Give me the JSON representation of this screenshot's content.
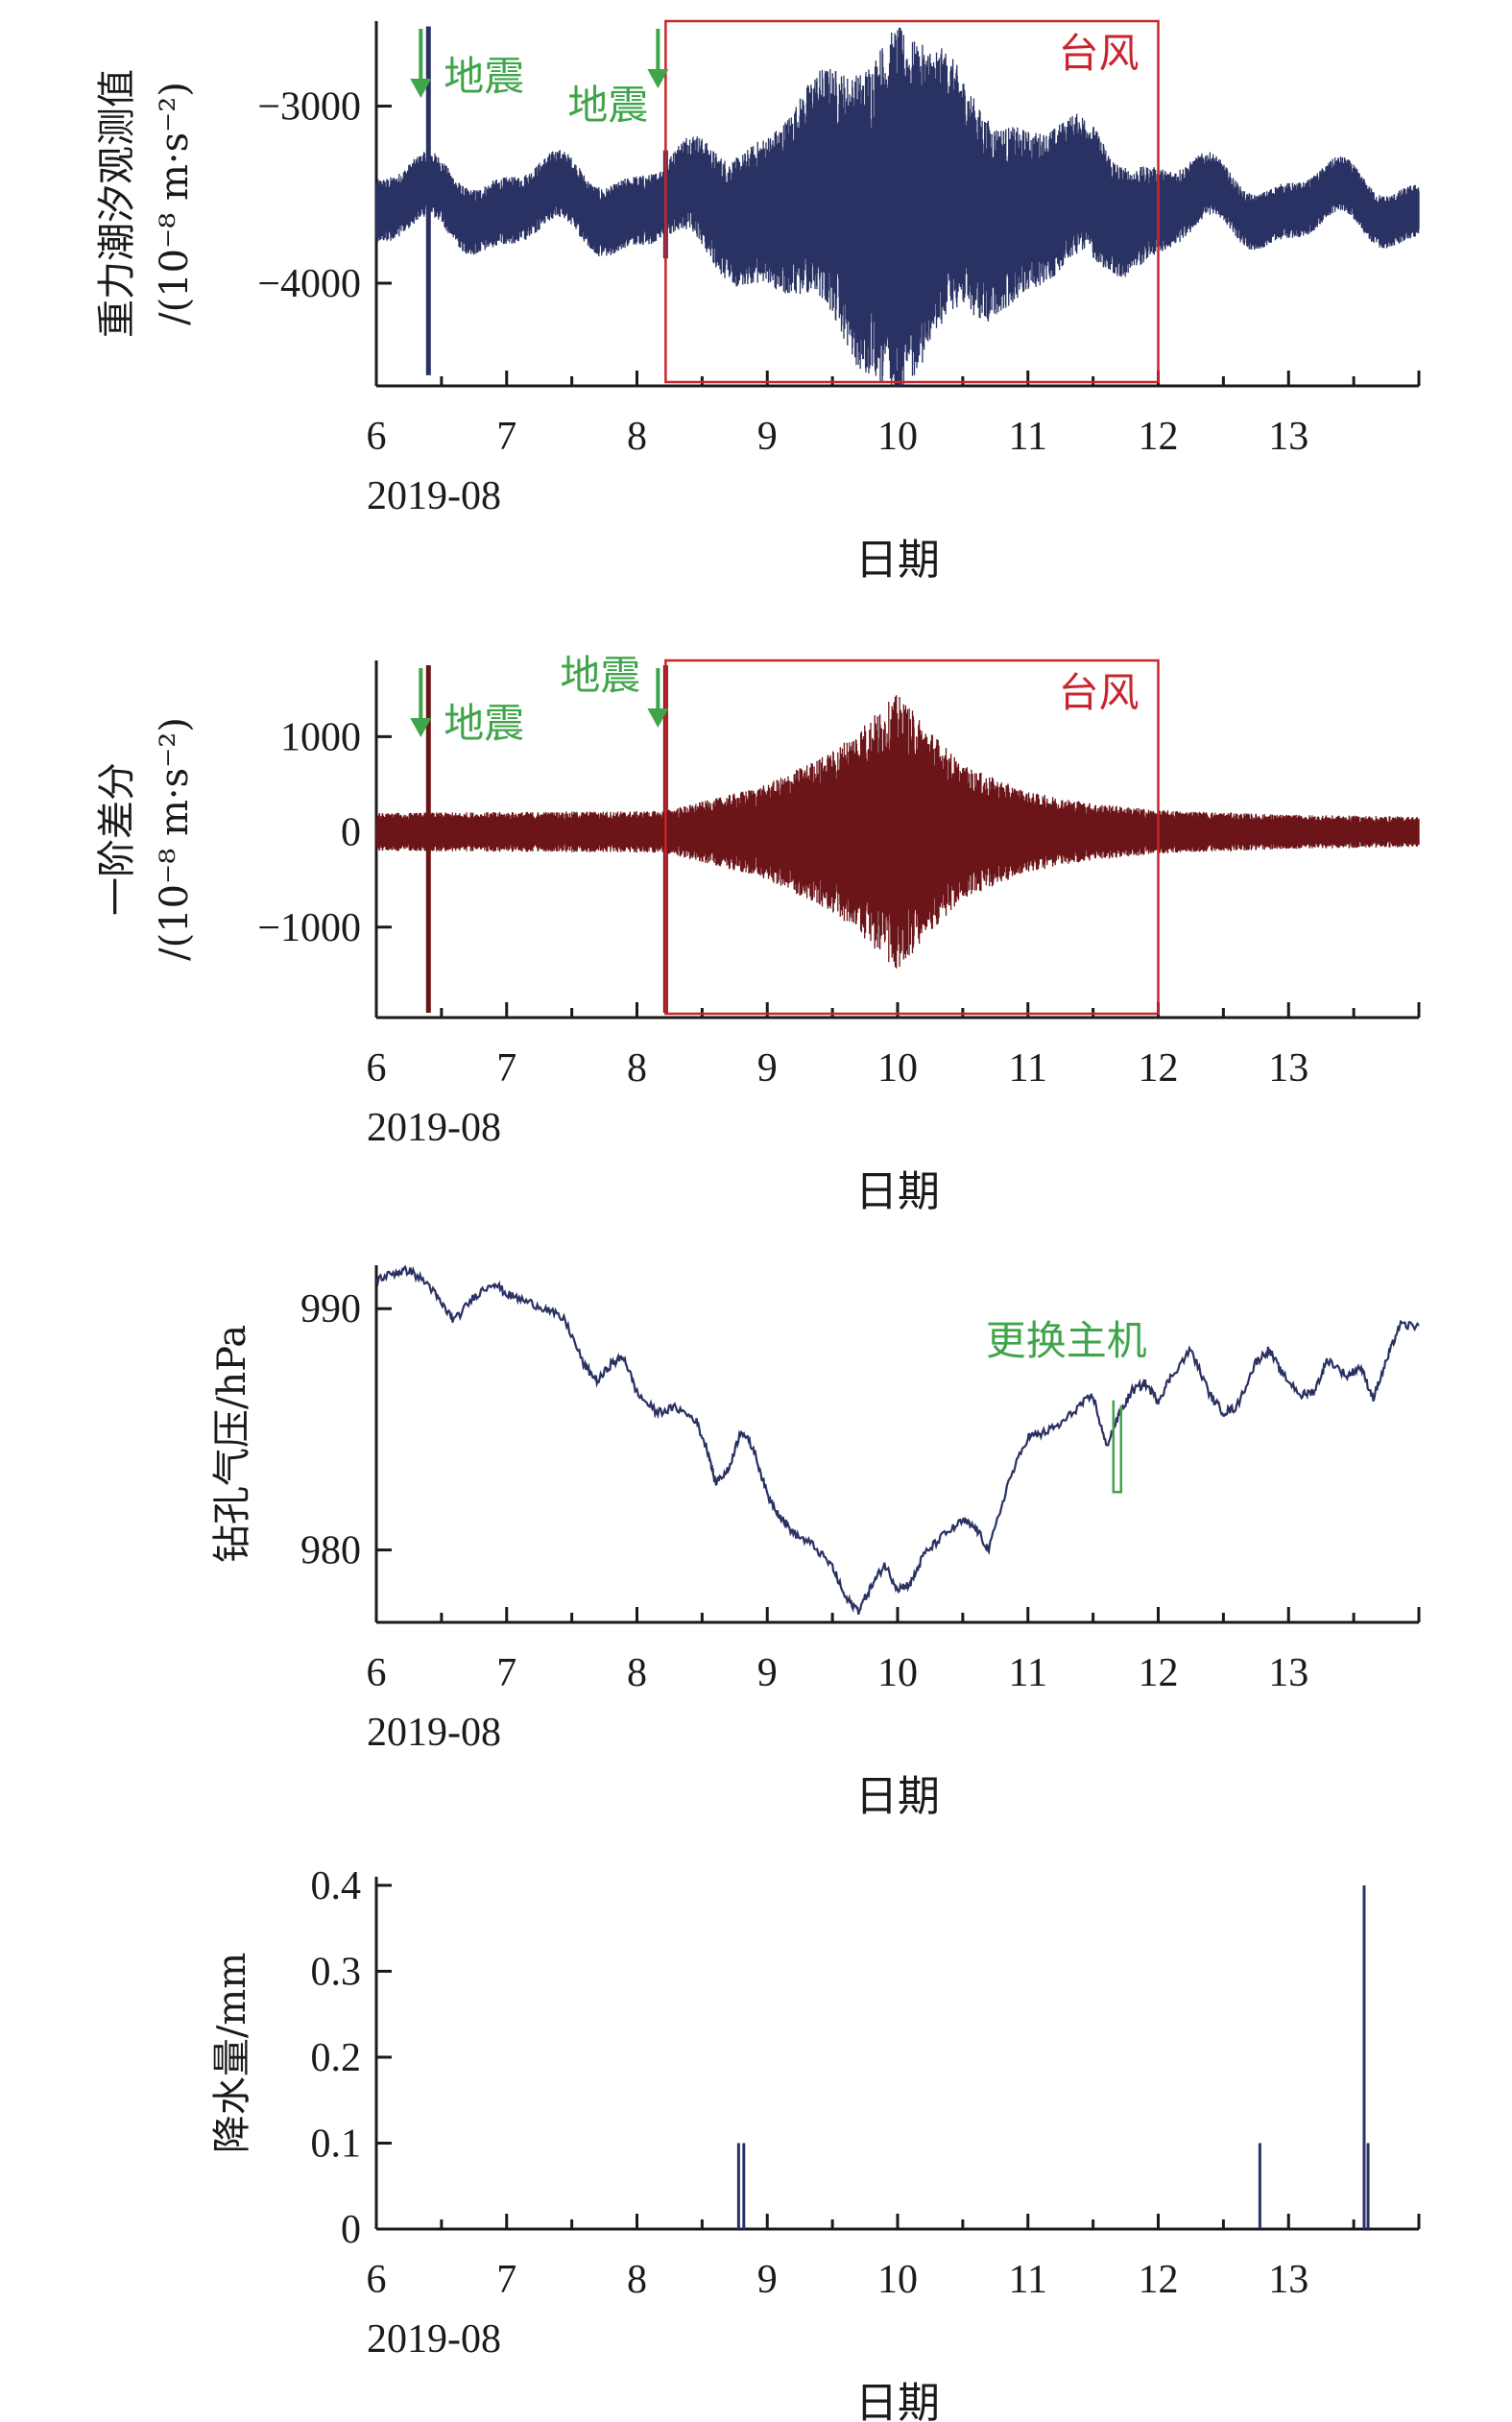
{
  "chart_data": [
    {
      "type": "line",
      "ylabel_line1": "重力潮汐观测值",
      "ylabel_line2": "/(10⁻⁸ m·s⁻²)",
      "xlabel": "日期",
      "x_date_label": "2019-08",
      "x_ticks": [
        "6",
        "7",
        "8",
        "9",
        "10",
        "11",
        "12",
        "13"
      ],
      "x_range": [
        6.0,
        14.0
      ],
      "y_ticks": [
        -3000,
        -4000
      ],
      "y_tick_labels": [
        "−3000",
        "−4000"
      ],
      "ylim": [
        -4580,
        -2520
      ],
      "series": [
        {
          "color": "#2a3263",
          "baseline": -3560,
          "envelope": [
            [
              6.0,
              180
            ],
            [
              8.2,
              200
            ],
            [
              8.4,
              280
            ],
            [
              9.0,
              420
            ],
            [
              9.5,
              700
            ],
            [
              10.0,
              1050
            ],
            [
              10.5,
              650
            ],
            [
              11.0,
              450
            ],
            [
              11.5,
              380
            ],
            [
              12.0,
              240
            ],
            [
              12.5,
              160
            ],
            [
              14.0,
              150
            ]
          ],
          "earthquakes": [
            [
              6.4,
              -2550,
              -4520
            ],
            [
              8.22,
              -3250,
              -3860
            ]
          ]
        }
      ],
      "annotations": [
        {
          "text": "地震",
          "x": 6.4,
          "color": "#3fa44a"
        },
        {
          "text": "地震",
          "x": 8.22,
          "color": "#3fa44a"
        },
        {
          "text": "台风",
          "x_range": [
            8.22,
            12.0
          ],
          "color": "#c9252c"
        }
      ]
    },
    {
      "type": "line",
      "ylabel_line1": "一阶差分",
      "ylabel_line2": "/(10⁻⁸ m·s⁻²)",
      "xlabel": "日期",
      "x_date_label": "2019-08",
      "x_ticks": [
        "6",
        "7",
        "8",
        "9",
        "10",
        "11",
        "12",
        "13"
      ],
      "x_range": [
        6.0,
        14.0
      ],
      "y_ticks": [
        1000,
        0,
        -1000
      ],
      "y_tick_labels": [
        "1000",
        "0",
        "−1000"
      ],
      "ylim": [
        -1950,
        1800
      ],
      "series": [
        {
          "color": "#6b1518",
          "baseline": 0,
          "envelope": [
            [
              6.0,
              200
            ],
            [
              8.2,
              220
            ],
            [
              8.6,
              350
            ],
            [
              9.0,
              500
            ],
            [
              9.5,
              850
            ],
            [
              10.0,
              1450
            ],
            [
              10.5,
              700
            ],
            [
              11.0,
              420
            ],
            [
              11.5,
              300
            ],
            [
              12.0,
              230
            ],
            [
              13.0,
              180
            ],
            [
              14.0,
              160
            ]
          ],
          "earthquakes": [
            [
              6.4,
              1750,
              -1900
            ],
            [
              8.22,
              1750,
              -1900
            ]
          ]
        }
      ],
      "annotations": [
        {
          "text": "地震",
          "x": 6.4,
          "color": "#3fa44a"
        },
        {
          "text": "地震",
          "x": 8.22,
          "color": "#3fa44a"
        },
        {
          "text": "台风",
          "x_range": [
            8.22,
            12.0
          ],
          "color": "#c9252c"
        }
      ]
    },
    {
      "type": "line",
      "ylabel": "钻孔气压/hPa",
      "xlabel": "日期",
      "x_date_label": "2019-08",
      "x_ticks": [
        "6",
        "7",
        "8",
        "9",
        "10",
        "11",
        "12",
        "13"
      ],
      "x_range": [
        6.0,
        14.0
      ],
      "y_ticks": [
        990,
        980
      ],
      "ylim": [
        977,
        991.8
      ],
      "series": [
        {
          "color": "#2a3263",
          "x": [
            6.0,
            6.15,
            6.25,
            6.4,
            6.5,
            6.6,
            6.75,
            6.9,
            7.0,
            7.15,
            7.3,
            7.45,
            7.6,
            7.7,
            7.8,
            7.9,
            8.0,
            8.15,
            8.3,
            8.45,
            8.55,
            8.6,
            8.7,
            8.8,
            8.9,
            9.0,
            9.1,
            9.2,
            9.35,
            9.5,
            9.6,
            9.7,
            9.8,
            9.9,
            10.0,
            10.1,
            10.2,
            10.35,
            10.5,
            10.6,
            10.7,
            10.85,
            11.0,
            11.1,
            11.25,
            11.4,
            11.5,
            11.6,
            11.7,
            11.8,
            11.9,
            12.0,
            12.1,
            12.25,
            12.4,
            12.5,
            12.6,
            12.75,
            12.85,
            12.95,
            13.1,
            13.2,
            13.3,
            13.45,
            13.55,
            13.65,
            13.75,
            13.85,
            14.0
          ],
          "values": [
            991.2,
            991.5,
            991.6,
            991.0,
            990.2,
            989.5,
            990.5,
            991.1,
            990.6,
            990.3,
            990.0,
            989.5,
            987.6,
            987.0,
            987.7,
            988.0,
            986.5,
            985.7,
            985.9,
            985.4,
            984.0,
            982.8,
            983.3,
            985.0,
            984.1,
            982.3,
            981.4,
            980.7,
            980.2,
            979.3,
            978.0,
            977.5,
            978.5,
            979.4,
            978.4,
            978.6,
            979.8,
            980.6,
            981.2,
            980.9,
            980.0,
            982.8,
            984.7,
            984.8,
            985.2,
            986.0,
            986.4,
            984.3,
            985.6,
            986.6,
            986.9,
            986.2,
            987.2,
            988.3,
            986.4,
            985.7,
            985.9,
            987.8,
            988.3,
            987.3,
            986.4,
            986.6,
            987.9,
            987.2,
            987.6,
            986.3,
            987.8,
            989.3,
            989.3
          ]
        }
      ],
      "annotations": [
        {
          "text": "更换主机",
          "x": 11.7,
          "color": "#3fa44a"
        }
      ]
    },
    {
      "type": "bar",
      "ylabel": "降水量/mm",
      "xlabel": "日期",
      "x_date_label": "2019-08",
      "x_ticks": [
        "6",
        "7",
        "8",
        "9",
        "10",
        "11",
        "12",
        "13"
      ],
      "x_range": [
        6.0,
        14.0
      ],
      "y_ticks": [
        0.4,
        0.3,
        0.2,
        0.1,
        0
      ],
      "y_tick_labels": [
        "0.4",
        "0.3",
        "0.2",
        "0.1",
        "0"
      ],
      "ylim": [
        0,
        0.41
      ],
      "series": [
        {
          "color": "#2a3263",
          "x": [
            8.78,
            8.82,
            12.78,
            13.58,
            13.61
          ],
          "values": [
            0.1,
            0.1,
            0.1,
            0.4,
            0.1
          ]
        }
      ]
    }
  ]
}
